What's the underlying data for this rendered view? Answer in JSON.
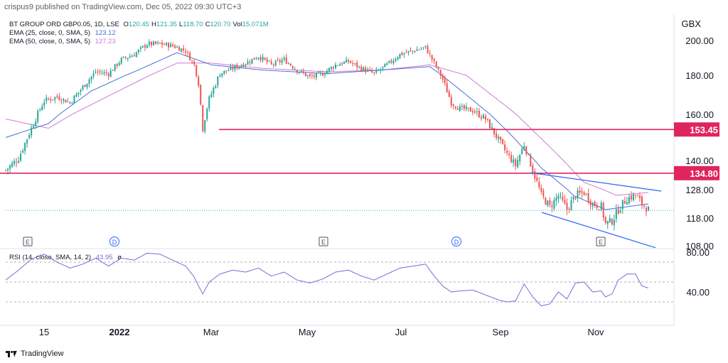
{
  "header": {
    "published": "crispus9 published on TradingView.com, Dec 05, 2022 09:30 UTC+3",
    "currency": "GBX"
  },
  "legend": {
    "symbol": "BT GROUP ORD GBP0.05, 1D, LSE",
    "ohlc": [
      {
        "k": "O",
        "v": "120.45"
      },
      {
        "k": "H",
        "v": "121.35"
      },
      {
        "k": "L",
        "v": "118.70"
      },
      {
        "k": "C",
        "v": "120.70"
      },
      {
        "k": "Vol",
        "v": "15.071M"
      }
    ],
    "ema25": {
      "label": "EMA (25, close, 0, SMA, 5)",
      "value": "123.12",
      "color": "#4a6fd8"
    },
    "ema50": {
      "label": "EMA (50, close, 0, SMA, 5)",
      "value": "127.23",
      "color": "#d07ad4"
    },
    "rsi": {
      "label": "RSI (14, close, SMA, 14, 2)",
      "value": "43.95",
      "extra": "ø",
      "color": "#7b6ad4"
    }
  },
  "footer": {
    "brand": "TradingView"
  },
  "colors": {
    "up": "#26a69a",
    "down": "#ef5350",
    "level": "#e0245e",
    "channel": "#2962ff",
    "last": "#26a69a"
  },
  "chart_data": {
    "type": "candlestick",
    "price_axis": {
      "ticks": [
        "200.00",
        "180.00",
        "160.00",
        "140.00",
        "128.00",
        "118.00",
        "108.00"
      ]
    },
    "rsi_axis": {
      "ticks": [
        "80.00",
        "40.00"
      ]
    },
    "x_ticks": [
      "15",
      "2022",
      "Mar",
      "May",
      "Jul",
      "Sep",
      "Nov"
    ],
    "events": [
      "E",
      "D",
      "E",
      "D",
      "E"
    ],
    "horizontal_levels": [
      {
        "value": 153.45,
        "label": "153.45"
      },
      {
        "value": 134.8,
        "label": "134.80"
      }
    ],
    "price_path": [
      [
        0,
        136
      ],
      [
        6,
        141
      ],
      [
        12,
        154
      ],
      [
        18,
        167
      ],
      [
        24,
        169
      ],
      [
        30,
        166
      ],
      [
        36,
        174
      ],
      [
        42,
        182
      ],
      [
        48,
        181
      ],
      [
        54,
        189
      ],
      [
        60,
        192
      ],
      [
        66,
        198
      ],
      [
        72,
        198
      ],
      [
        78,
        197
      ],
      [
        84,
        194
      ],
      [
        88,
        186
      ],
      [
        90,
        176
      ],
      [
        92,
        154
      ],
      [
        95,
        168
      ],
      [
        100,
        181
      ],
      [
        106,
        184
      ],
      [
        112,
        187
      ],
      [
        118,
        191
      ],
      [
        124,
        186
      ],
      [
        130,
        189
      ],
      [
        136,
        183
      ],
      [
        142,
        179
      ],
      [
        148,
        181
      ],
      [
        154,
        186
      ],
      [
        160,
        188
      ],
      [
        166,
        184
      ],
      [
        172,
        181
      ],
      [
        178,
        186
      ],
      [
        184,
        192
      ],
      [
        190,
        194
      ],
      [
        196,
        196
      ],
      [
        200,
        187
      ],
      [
        204,
        178
      ],
      [
        208,
        166
      ],
      [
        212,
        163
      ],
      [
        218,
        162
      ],
      [
        224,
        158
      ],
      [
        230,
        149
      ],
      [
        234,
        143
      ],
      [
        238,
        138
      ],
      [
        242,
        147
      ],
      [
        246,
        136
      ],
      [
        250,
        126
      ],
      [
        254,
        122
      ],
      [
        258,
        126
      ],
      [
        262,
        121
      ],
      [
        266,
        126
      ],
      [
        270,
        127
      ],
      [
        274,
        123
      ],
      [
        278,
        122
      ],
      [
        280,
        116
      ],
      [
        283,
        117
      ],
      [
        286,
        121
      ],
      [
        290,
        125
      ],
      [
        294,
        126
      ],
      [
        297,
        123
      ],
      [
        300,
        121
      ]
    ],
    "ema25_path": [
      [
        0,
        150
      ],
      [
        20,
        156
      ],
      [
        40,
        172
      ],
      [
        60,
        182
      ],
      [
        80,
        193
      ],
      [
        96,
        186
      ],
      [
        120,
        183
      ],
      [
        150,
        181
      ],
      [
        175,
        183
      ],
      [
        198,
        185
      ],
      [
        215,
        170
      ],
      [
        235,
        152
      ],
      [
        250,
        137
      ],
      [
        265,
        126
      ],
      [
        280,
        121
      ],
      [
        300,
        123
      ]
    ],
    "ema50_path": [
      [
        0,
        158
      ],
      [
        20,
        154
      ],
      [
        40,
        165
      ],
      [
        60,
        176
      ],
      [
        80,
        187
      ],
      [
        96,
        187
      ],
      [
        120,
        184
      ],
      [
        150,
        182
      ],
      [
        175,
        183
      ],
      [
        198,
        186
      ],
      [
        215,
        180
      ],
      [
        235,
        163
      ],
      [
        255,
        145
      ],
      [
        270,
        131
      ],
      [
        285,
        126
      ],
      [
        300,
        127
      ]
    ],
    "rsi_path": [
      [
        0,
        52
      ],
      [
        6,
        62
      ],
      [
        12,
        73
      ],
      [
        18,
        78
      ],
      [
        24,
        70
      ],
      [
        30,
        64
      ],
      [
        36,
        68
      ],
      [
        42,
        74
      ],
      [
        48,
        66
      ],
      [
        54,
        74
      ],
      [
        60,
        72
      ],
      [
        66,
        79
      ],
      [
        72,
        78
      ],
      [
        78,
        72
      ],
      [
        84,
        66
      ],
      [
        88,
        55
      ],
      [
        90,
        46
      ],
      [
        92,
        38
      ],
      [
        95,
        50
      ],
      [
        100,
        58
      ],
      [
        106,
        62
      ],
      [
        112,
        60
      ],
      [
        118,
        64
      ],
      [
        124,
        56
      ],
      [
        130,
        60
      ],
      [
        136,
        52
      ],
      [
        142,
        49
      ],
      [
        148,
        53
      ],
      [
        154,
        60
      ],
      [
        160,
        62
      ],
      [
        166,
        56
      ],
      [
        172,
        52
      ],
      [
        178,
        58
      ],
      [
        184,
        64
      ],
      [
        190,
        66
      ],
      [
        196,
        68
      ],
      [
        200,
        56
      ],
      [
        204,
        46
      ],
      [
        208,
        40
      ],
      [
        212,
        41
      ],
      [
        218,
        42
      ],
      [
        224,
        37
      ],
      [
        230,
        32
      ],
      [
        234,
        30
      ],
      [
        238,
        31
      ],
      [
        242,
        48
      ],
      [
        246,
        35
      ],
      [
        250,
        26
      ],
      [
        254,
        28
      ],
      [
        258,
        40
      ],
      [
        262,
        33
      ],
      [
        266,
        49
      ],
      [
        270,
        50
      ],
      [
        274,
        40
      ],
      [
        278,
        41
      ],
      [
        280,
        35
      ],
      [
        283,
        38
      ],
      [
        286,
        52
      ],
      [
        290,
        58
      ],
      [
        294,
        58
      ],
      [
        297,
        46
      ],
      [
        300,
        44
      ]
    ]
  }
}
